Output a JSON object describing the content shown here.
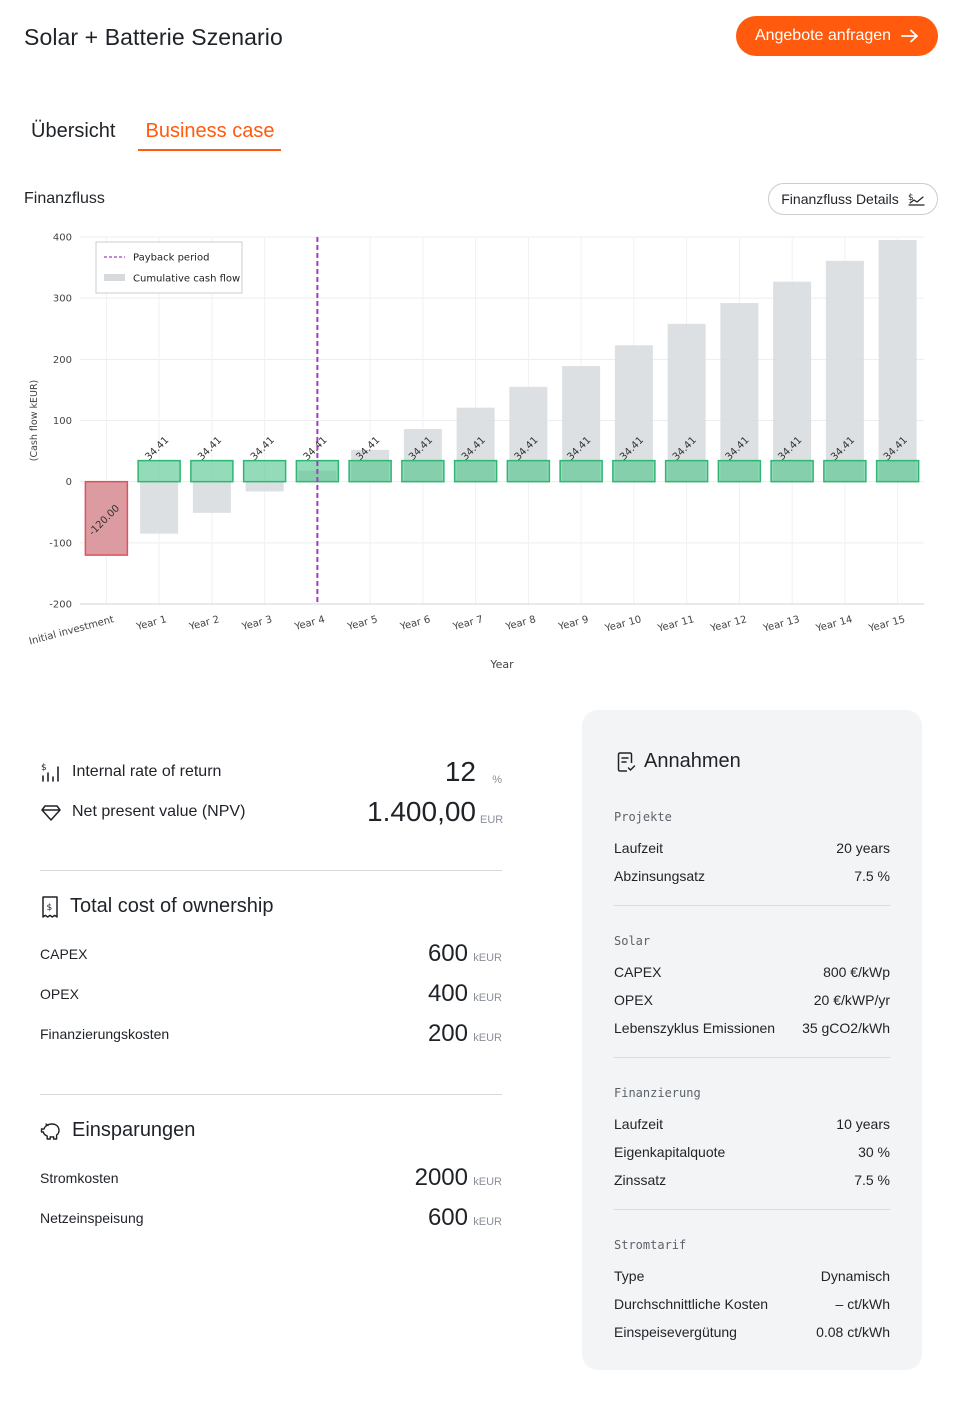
{
  "header": {
    "title": "Solar + Batterie Szenario",
    "cta_label": "Angebote anfragen"
  },
  "tabs": [
    {
      "label": "Übersicht",
      "active": false
    },
    {
      "label": "Business case",
      "active": true
    }
  ],
  "cashflow": {
    "label": "Finanzfluss",
    "details_label": "Finanzfluss Details"
  },
  "chart_data": {
    "type": "bar",
    "xlabel": "Year",
    "ylabel": "(Cash flow kEUR)",
    "ylim": [
      -200,
      400
    ],
    "yticks": [
      400,
      300,
      200,
      100,
      0,
      -100,
      -200
    ],
    "grid": true,
    "legend_position": "top-left",
    "legend": [
      "Payback period",
      "Cumulative cash flow"
    ],
    "categories": [
      "Initial investment",
      "Year 1",
      "Year 2",
      "Year 3",
      "Year 4",
      "Year 5",
      "Year 6",
      "Year 7",
      "Year 8",
      "Year 9",
      "Year 10",
      "Year 11",
      "Year 12",
      "Year 13",
      "Year 14",
      "Year 15"
    ],
    "series": [
      {
        "name": "Cash flow",
        "values": [
          -120.0,
          34.41,
          34.41,
          34.41,
          34.41,
          34.41,
          34.41,
          34.41,
          34.41,
          34.41,
          34.41,
          34.41,
          34.41,
          34.41,
          34.41,
          34.41
        ],
        "labels": [
          "-120.00",
          "34.41",
          "34.41",
          "34.41",
          "34.41",
          "34.41",
          "34.41",
          "34.41",
          "34.41",
          "34.41",
          "34.41",
          "34.41",
          "34.41",
          "34.41",
          "34.41",
          "34.41"
        ]
      },
      {
        "name": "Cumulative cash flow",
        "values": [
          0,
          -85,
          -51,
          -16,
          18,
          52,
          86,
          121,
          155,
          189,
          223,
          258,
          292,
          327,
          361,
          395
        ]
      }
    ],
    "payback_period_index": 4,
    "colors": {
      "negative": "#d9969c",
      "negative_edge": "#e0505d",
      "positive": "#4cc38a",
      "positive_edge": "#2fb574",
      "cumulative": "#d7dadd",
      "payback": "#a03dbd"
    }
  },
  "metrics": [
    {
      "icon": "bar-chart-icon",
      "label": "Internal rate of return",
      "value": "12",
      "unit": "%"
    },
    {
      "icon": "diamond-icon",
      "label": "Net present value (NPV)",
      "value": "1.400,00",
      "unit": "EUR"
    }
  ],
  "tco": {
    "title": "Total cost of ownership",
    "items": [
      {
        "label": "CAPEX",
        "value": "600",
        "unit": "kEUR"
      },
      {
        "label": "OPEX",
        "value": "400",
        "unit": "kEUR"
      },
      {
        "label": "Finanzierungskosten",
        "value": "200",
        "unit": "kEUR"
      }
    ]
  },
  "savings": {
    "title": "Einsparungen",
    "items": [
      {
        "label": "Stromkosten",
        "value": "2000",
        "unit": "kEUR"
      },
      {
        "label": "Netzeinspeisung",
        "value": "600",
        "unit": "kEUR"
      }
    ]
  },
  "assumptions": {
    "title": "Annahmen",
    "groups": [
      {
        "title": "Projekte",
        "rows": [
          {
            "k": "Laufzeit",
            "v": "20 years"
          },
          {
            "k": "Abzinsungsatz",
            "v": "7.5 %"
          }
        ]
      },
      {
        "title": "Solar",
        "rows": [
          {
            "k": "CAPEX",
            "v": "800 €/kWp"
          },
          {
            "k": "OPEX",
            "v": "20 €/kWP/yr"
          },
          {
            "k": "Lebenszyklus Emissionen",
            "v": "35 gCO2/kWh"
          }
        ]
      },
      {
        "title": "Finanzierung",
        "rows": [
          {
            "k": "Laufzeit",
            "v": "10 years"
          },
          {
            "k": "Eigenkapitalquote",
            "v": "30 %"
          },
          {
            "k": "Zinssatz",
            "v": "7.5 %"
          }
        ]
      },
      {
        "title": "Stromtarif",
        "rows": [
          {
            "k": "Type",
            "v": "Dynamisch"
          },
          {
            "k": "Durchschnittliche Kosten",
            "v": "– ct/kWh"
          },
          {
            "k": "Einspeisevergütung",
            "v": "0.08 ct/kWh"
          }
        ]
      }
    ]
  }
}
